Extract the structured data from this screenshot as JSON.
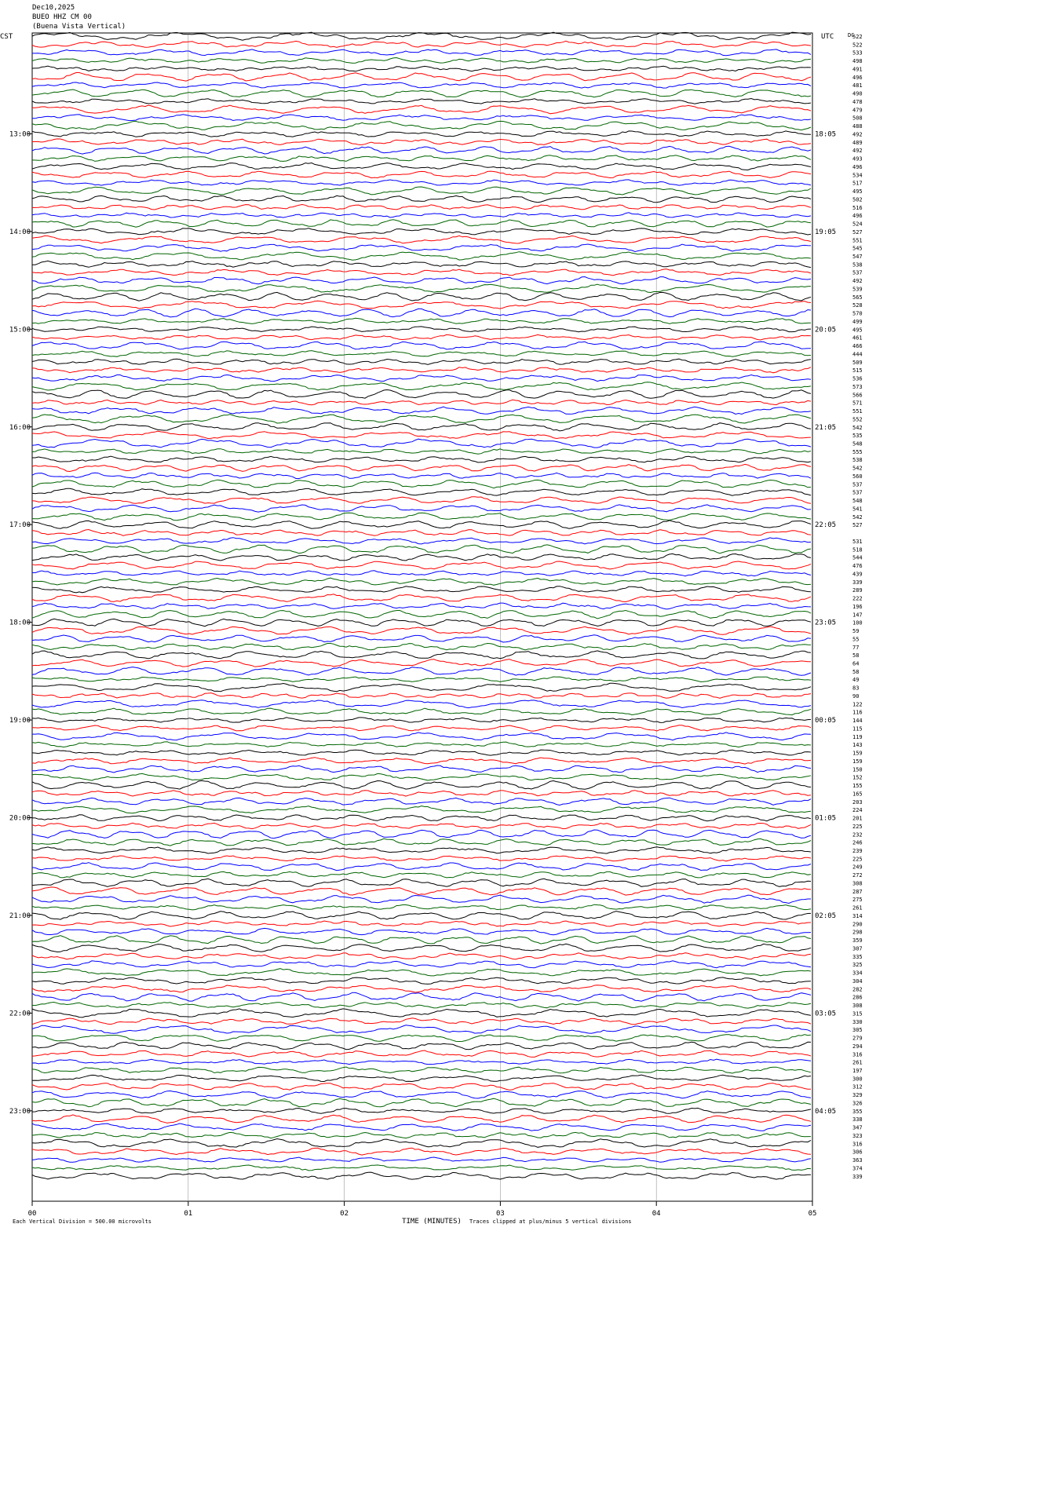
{
  "header": {
    "date": "Dec10,2025",
    "station": "BUEO HHZ CM 00",
    "site": "(Buena Vista Vertical)"
  },
  "left_label": "CST",
  "right_label": "UTC",
  "dc_label": "DC",
  "left_times": [
    "13:00",
    "14:00",
    "15:00",
    "16:00",
    "17:00",
    "18:00",
    "19:00",
    "20:00",
    "21:00",
    "22:00",
    "23:00"
  ],
  "right_times": [
    "18:05",
    "19:05",
    "20:05",
    "21:05",
    "22:05",
    "23:05",
    "00:05",
    "01:05",
    "02:05",
    "03:05",
    "04:05"
  ],
  "x_ticks": [
    "00",
    "01",
    "02",
    "03",
    "04",
    "05"
  ],
  "x_title": "TIME (MINUTES)",
  "footer_left": "Each Vertical Division = 500.00 microvolts",
  "footer_right": "Traces clipped at plus/minus 5 vertical divisions",
  "trace_colors": [
    "#000000",
    "#ff0000",
    "#0000ff",
    "#006400"
  ],
  "dc_offsets": [
    522,
    522,
    533,
    498,
    491,
    496,
    481,
    490,
    478,
    479,
    508,
    488,
    492,
    489,
    492,
    493,
    496,
    534,
    517,
    495,
    502,
    516,
    496,
    524,
    527,
    551,
    545,
    547,
    538,
    537,
    492,
    539,
    565,
    528,
    570,
    499,
    495,
    461,
    466,
    444,
    509,
    515,
    536,
    573,
    566,
    571,
    551,
    552,
    542,
    535,
    548,
    555,
    538,
    542,
    560,
    537,
    537,
    548,
    541,
    542,
    527,
    null,
    531,
    518,
    544,
    476,
    439,
    339,
    289,
    222,
    196,
    147,
    100,
    59,
    55,
    77,
    58,
    64,
    58,
    49,
    83,
    90,
    122,
    116,
    144,
    115,
    119,
    143,
    159,
    159,
    150,
    152,
    155,
    165,
    203,
    224,
    201,
    225,
    232,
    246,
    239,
    225,
    249,
    272,
    308,
    287,
    275,
    261,
    314,
    290,
    298,
    359,
    307,
    335,
    325,
    334,
    304,
    282,
    286,
    308,
    315,
    330,
    305,
    279,
    294,
    316,
    261,
    197,
    300,
    312,
    329,
    326,
    355,
    338,
    347,
    323,
    316,
    306,
    363,
    374,
    339
  ]
}
